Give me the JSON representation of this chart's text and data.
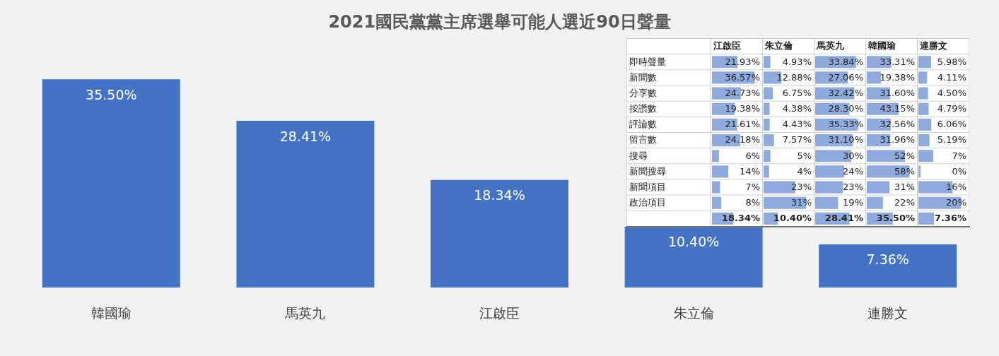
{
  "chart_data": [
    {
      "type": "bar",
      "title": "2021國民黨黨主席選舉可能人選近90日聲量",
      "categories": [
        "韓國瑜",
        "馬英九",
        "江啟臣",
        "朱立倫",
        "連勝文"
      ],
      "values": [
        35.5,
        28.41,
        18.34,
        10.4,
        7.36
      ],
      "value_labels": [
        "35.50%",
        "28.41%",
        "18.34%",
        "10.40%",
        "7.36%"
      ],
      "color": "#4472c4"
    },
    {
      "type": "heatmap",
      "color": "#8faadc",
      "categories": [
        "江啟臣",
        "朱立倫",
        "馬英九",
        "韓國瑜",
        "連勝文"
      ],
      "y_categories": [
        "即時聲量",
        "新聞數",
        "分享數",
        "按讚數",
        "評論數",
        "留言數",
        "搜尋",
        "新聞搜尋",
        "新聞項目",
        "政治項目",
        null
      ],
      "cells": [
        [
          21.93,
          4.93,
          33.84,
          33.31,
          5.98
        ],
        [
          36.57,
          12.88,
          27.06,
          19.38,
          4.11
        ],
        [
          24.73,
          6.75,
          32.42,
          31.6,
          4.5
        ],
        [
          19.38,
          4.38,
          28.3,
          43.15,
          4.79
        ],
        [
          21.61,
          4.43,
          35.33,
          32.56,
          6.06
        ],
        [
          24.18,
          7.57,
          31.1,
          31.96,
          5.19
        ],
        [
          6,
          5,
          30,
          52,
          7
        ],
        [
          14,
          4,
          24,
          58,
          0
        ],
        [
          7,
          23,
          23,
          31,
          16
        ],
        [
          8,
          31,
          19,
          22,
          20
        ],
        [
          18.34,
          10.4,
          28.41,
          35.5,
          7.36
        ]
      ],
      "cell_labels": [
        [
          "21.93%",
          "4.93%",
          "33.84%",
          "33.31%",
          "5.98%"
        ],
        [
          "36.57%",
          "12.88%",
          "27.06%",
          "19.38%",
          "4.11%"
        ],
        [
          "24.73%",
          "6.75%",
          "32.42%",
          "31.60%",
          "4.50%"
        ],
        [
          "19.38%",
          "4.38%",
          "28.30%",
          "43.15%",
          "4.79%"
        ],
        [
          "21.61%",
          "4.43%",
          "35.33%",
          "32.56%",
          "6.06%"
        ],
        [
          "24.18%",
          "7.57%",
          "31.10%",
          "31.96%",
          "5.19%"
        ],
        [
          "6%",
          "5%",
          "30%",
          "52%",
          "7%"
        ],
        [
          "14%",
          "4%",
          "24%",
          "58%",
          "0%"
        ],
        [
          "7%",
          "23%",
          "23%",
          "31%",
          "16%"
        ],
        [
          "8%",
          "31%",
          "19%",
          "22%",
          "20%"
        ],
        [
          "18.34%",
          "10.40%",
          "28.41%",
          "35.50%",
          "7.36%"
        ]
      ]
    }
  ]
}
